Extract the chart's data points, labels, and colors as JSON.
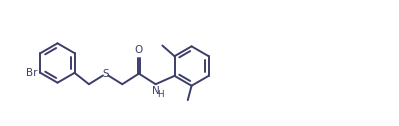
{
  "bg_color": "#ffffff",
  "line_color": "#3d3d6b",
  "line_width": 1.4,
  "font_size": 7.5,
  "figsize": [
    3.99,
    1.26
  ],
  "dpi": 100,
  "xlim": [
    0.0,
    10.5
  ],
  "ylim": [
    0.5,
    3.5
  ]
}
